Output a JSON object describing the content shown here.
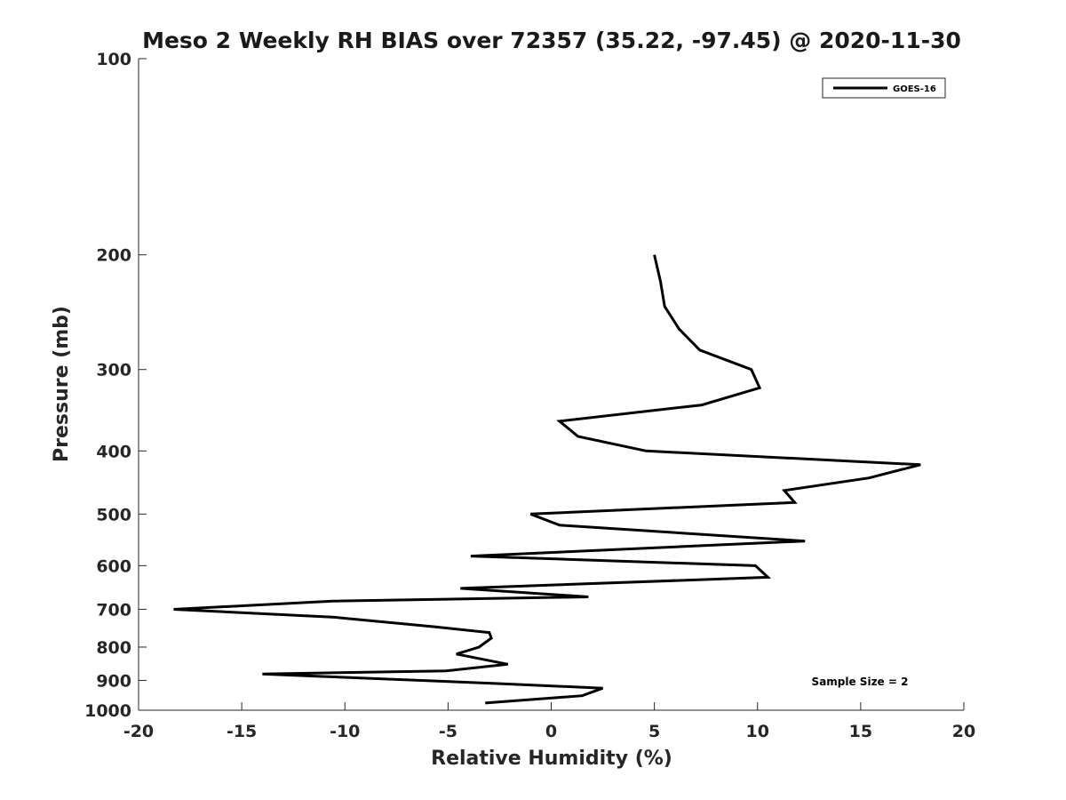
{
  "chart_data": {
    "type": "line",
    "title": "Meso 2 Weekly RH BIAS over 72357 (35.22, -97.45) @ 2020-11-30",
    "xlabel": "Relative Humidity (%)",
    "ylabel": "Pressure (mb)",
    "xlim": [
      -20,
      20
    ],
    "ylim": [
      100,
      1000
    ],
    "y_scale": "log",
    "y_reversed": true,
    "x_ticks": [
      "-20",
      "-15",
      "-10",
      "-5",
      "0",
      "5",
      "10",
      "15",
      "20"
    ],
    "y_ticks": [
      "100",
      "200",
      "300",
      "400",
      "500",
      "600",
      "700",
      "800",
      "900",
      "1000"
    ],
    "grid": false,
    "legend_position": "top-right",
    "annotation": "Sample Size = 2",
    "series": [
      {
        "name": "GOES-16",
        "color": "#000000",
        "x": [
          5.0,
          5.3,
          5.5,
          6.2,
          7.2,
          9.7,
          10.1,
          7.3,
          0.4,
          1.3,
          4.6,
          17.9,
          15.4,
          11.3,
          11.8,
          -1.0,
          0.4,
          12.3,
          -3.9,
          9.9,
          10.5,
          -4.4,
          1.8,
          -10.6,
          -18.3,
          -10.5,
          -5.6,
          -3.0,
          -2.9,
          -3.5,
          -4.6,
          -2.1,
          -5.1,
          -14.0,
          -2.6,
          2.5,
          1.5,
          -3.2
        ],
        "y": [
          200,
          220,
          240,
          260,
          280,
          300,
          320,
          340,
          360,
          380,
          400,
          420,
          440,
          460,
          480,
          500,
          520,
          550,
          580,
          600,
          625,
          650,
          670,
          680,
          700,
          720,
          745,
          760,
          775,
          800,
          820,
          850,
          870,
          880,
          910,
          925,
          950,
          975
        ]
      }
    ]
  }
}
